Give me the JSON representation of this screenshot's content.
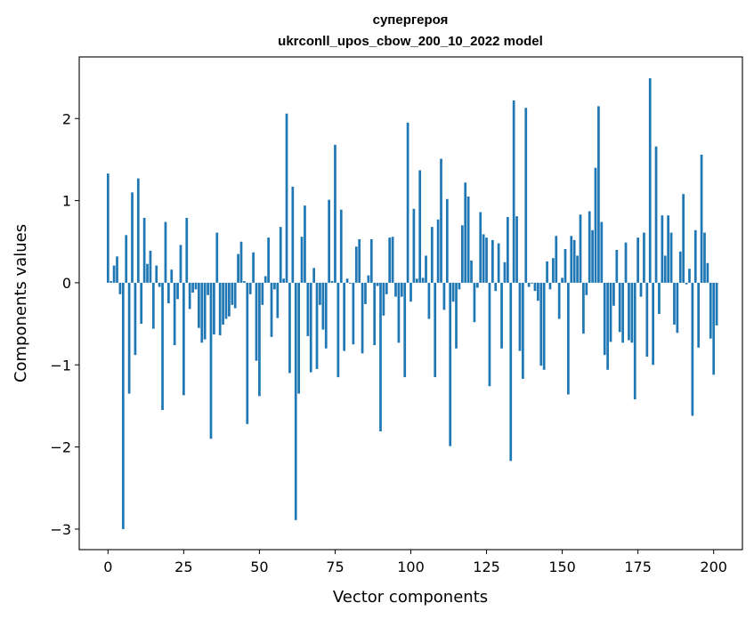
{
  "chart_data": {
    "type": "bar",
    "title_lines": [
      "супергероя",
      "ukrconll_upos_cbow_200_10_2022 model"
    ],
    "xlabel": "Vector components",
    "ylabel": "Components values",
    "xlim": [
      -9.5,
      209.5
    ],
    "ylim": [
      -3.25,
      2.75
    ],
    "xticks": [
      0,
      25,
      50,
      75,
      100,
      125,
      150,
      175,
      200
    ],
    "xtick_labels": [
      "0",
      "25",
      "50",
      "75",
      "100",
      "125",
      "150",
      "175",
      "200"
    ],
    "yticks": [
      -3,
      -2,
      -1,
      0,
      1,
      2
    ],
    "ytick_labels": [
      "−3",
      "−2",
      "−1",
      "0",
      "1",
      "2"
    ],
    "grid": false,
    "bar_color": "#1f77b4",
    "values": [
      1.33,
      0.02,
      0.21,
      0.32,
      -0.14,
      -3.0,
      0.58,
      -1.35,
      1.1,
      -0.88,
      1.27,
      -0.5,
      0.79,
      0.23,
      0.39,
      -0.56,
      0.21,
      -0.05,
      -1.55,
      0.74,
      -0.25,
      0.16,
      -0.76,
      -0.2,
      0.46,
      -1.37,
      0.79,
      -0.32,
      -0.12,
      -0.08,
      -0.55,
      -0.73,
      -0.69,
      -0.15,
      -1.9,
      -0.63,
      0.61,
      -0.64,
      -0.51,
      -0.44,
      -0.41,
      -0.27,
      -0.31,
      0.35,
      0.5,
      0.02,
      -1.72,
      -0.14,
      0.37,
      -0.95,
      -1.38,
      -0.27,
      0.08,
      0.55,
      -0.66,
      -0.08,
      -0.43,
      0.68,
      0.05,
      2.06,
      -1.1,
      1.17,
      -2.89,
      -1.35,
      0.56,
      0.94,
      -0.65,
      -1.09,
      0.18,
      -1.05,
      -0.27,
      -0.57,
      -0.8,
      1.01,
      0.02,
      1.68,
      -1.15,
      0.89,
      -0.83,
      0.05,
      -0.01,
      -0.75,
      0.44,
      0.53,
      -0.86,
      -0.26,
      0.09,
      0.53,
      -0.76,
      -0.04,
      -1.81,
      -0.4,
      -0.14,
      0.55,
      0.56,
      -0.17,
      -0.73,
      -0.17,
      -1.15,
      1.95,
      -0.23,
      0.9,
      0.05,
      1.37,
      0.06,
      0.33,
      -0.44,
      0.68,
      -1.15,
      0.77,
      1.51,
      -0.33,
      1.02,
      -1.99,
      -0.23,
      -0.8,
      -0.08,
      0.7,
      1.22,
      1.05,
      0.27,
      -0.48,
      -0.06,
      0.86,
      0.59,
      0.55,
      -1.26,
      0.52,
      -0.1,
      0.48,
      -0.8,
      0.25,
      0.8,
      -2.17,
      2.22,
      0.81,
      -0.83,
      -1.17,
      2.13,
      -0.05,
      -0.01,
      -0.1,
      -0.22,
      -1.01,
      -1.06,
      0.26,
      -0.08,
      0.3,
      0.57,
      -0.44,
      0.06,
      0.41,
      -1.36,
      0.57,
      0.52,
      0.33,
      0.83,
      -0.62,
      -0.15,
      0.87,
      0.64,
      1.4,
      2.15,
      0.74,
      -0.88,
      -1.06,
      -0.72,
      -0.28,
      0.4,
      -0.6,
      -0.73,
      0.49,
      -0.7,
      -0.73,
      -1.42,
      0.55,
      -0.17,
      0.61,
      -0.9,
      2.49,
      -1.0,
      1.66,
      -0.38,
      0.82,
      0.33,
      0.82,
      0.61,
      -0.51,
      -0.61,
      0.38,
      1.08,
      -0.02,
      0.17,
      -1.62,
      0.64,
      -0.79,
      1.56,
      0.61,
      0.24,
      -0.68,
      -1.12,
      -0.52
    ]
  }
}
